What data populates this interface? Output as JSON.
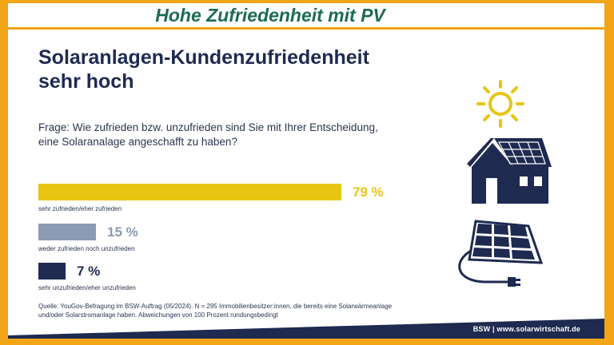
{
  "banner": {
    "title": "Hohe Zufriedenheit mit PV"
  },
  "slide": {
    "headline_line1": "Solaranlagen-Kundenzufriedenheit",
    "headline_line2": "sehr hoch",
    "question_line1": "Frage: Wie zufrieden bzw. unzufrieden sind Sie mit Ihrer Entscheidung,",
    "question_line2": "eine Solaranalage angeschafft zu haben?",
    "source_line1": "Quelle: YouGov-Befragung im BSW-Auftrag (05/2024). N = 295 Immobilienbesitzer:innen, die bereits eine Solarwärmeanlage",
    "source_line2": "und/oder Solarstromanlage haben. Abweichungen von 100 Prozent rundungsbedingt",
    "footer": "BSW | www.solarwirtschaft.de"
  },
  "colors": {
    "yellow": "#e8c511",
    "gray": "#8a9bb3",
    "navy": "#1e2a50",
    "orange": "#f2a516",
    "green": "#1d6b52"
  },
  "icons": [
    "sun-icon",
    "house-with-solar-roof-icon",
    "solar-panel-plug-icon"
  ],
  "chart_data": {
    "type": "bar",
    "orientation": "horizontal",
    "categories": [
      "sehr zufrieden/eher zufrieden",
      "weder zufrieden noch unzufrieden",
      "sehr unzufrieden/eher unzufrieden"
    ],
    "values": [
      79,
      15,
      7
    ],
    "labels": [
      "79 %",
      "15 %",
      "7 %"
    ],
    "unit": "%",
    "xlim": [
      0,
      100
    ],
    "title": "Solaranlagen-Kundenzufriedenheit sehr hoch"
  }
}
